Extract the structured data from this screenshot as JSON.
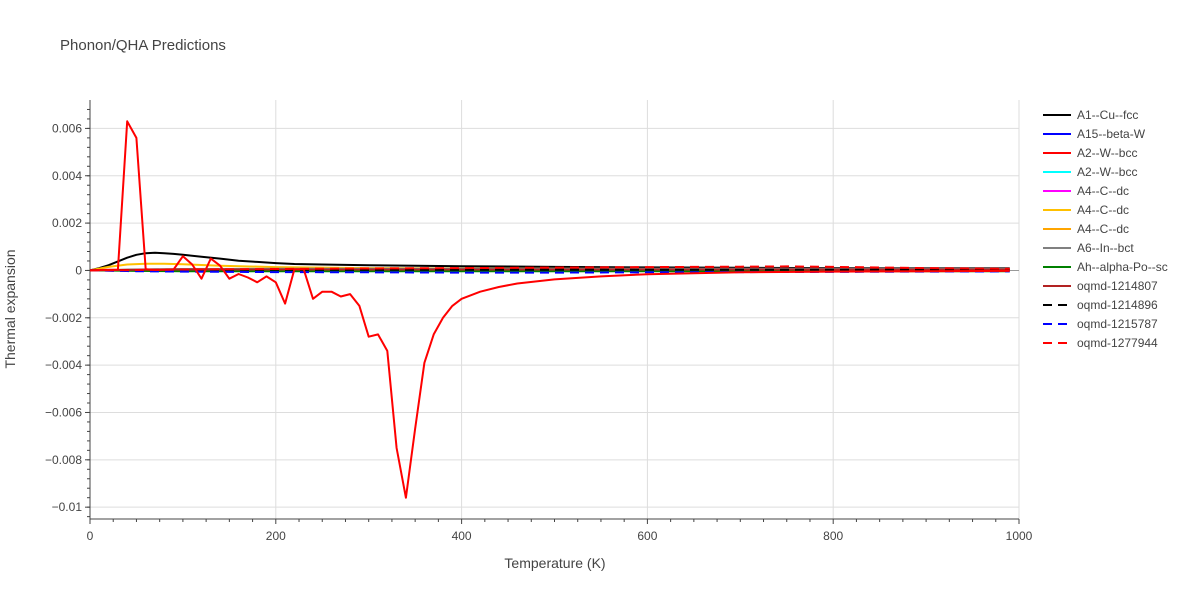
{
  "chart_data": {
    "type": "line",
    "title": "Phonon/QHA Predictions",
    "xlabel": "Temperature (K)",
    "ylabel": "Thermal expansion",
    "xlim": [
      0,
      1000
    ],
    "ylim": [
      -0.0105,
      0.0072
    ],
    "x_ticks": [
      0,
      200,
      400,
      600,
      800,
      1000
    ],
    "x_tick_labels": [
      "0",
      "200",
      "400",
      "600",
      "800",
      "1000"
    ],
    "y_ticks": [
      0.006,
      0.004,
      0.002,
      0,
      -0.002,
      -0.004,
      -0.006,
      -0.008,
      -0.01
    ],
    "y_tick_labels": [
      "0.006",
      "0.004",
      "0.002",
      "0",
      "−0.002",
      "−0.004",
      "−0.006",
      "−0.008",
      "−0.01"
    ],
    "grid": true,
    "legend_position": "right",
    "series": [
      {
        "name": "A1--Cu--fcc",
        "color": "#000000",
        "dash": "solid",
        "x": [
          0,
          10,
          20,
          30,
          40,
          50,
          60,
          70,
          80,
          90,
          100,
          120,
          140,
          160,
          180,
          200,
          220,
          250,
          300,
          400,
          500,
          600,
          700,
          800,
          900,
          990
        ],
        "y": [
          0,
          0.0001,
          0.00022,
          0.00038,
          0.00054,
          0.00066,
          0.00073,
          0.00075,
          0.00073,
          0.0007,
          0.00066,
          0.00058,
          0.0005,
          0.00041,
          0.00036,
          0.00031,
          0.00027,
          0.00025,
          0.00022,
          0.00018,
          0.00015,
          0.00013,
          0.00011,
          0.0001,
          9e-05,
          9e-05
        ]
      },
      {
        "name": "A15--beta-W",
        "color": "#0000ff",
        "dash": "solid",
        "x": [
          0,
          50,
          100,
          200,
          400,
          600,
          800,
          990
        ],
        "y": [
          0,
          1e-05,
          2e-05,
          2e-05,
          2e-05,
          2e-05,
          2e-05,
          2e-05
        ]
      },
      {
        "name": "A2--W--bcc",
        "color": "#ff0000",
        "dash": "solid",
        "x": [
          0,
          10,
          20,
          30,
          40,
          50,
          60,
          70,
          80,
          90,
          100,
          110,
          120,
          130,
          140,
          150,
          160,
          170,
          180,
          190,
          200,
          210,
          220,
          230,
          240,
          250,
          260,
          270,
          280,
          290,
          300,
          310,
          320,
          330,
          340,
          350,
          360,
          370,
          380,
          390,
          400,
          420,
          440,
          460,
          500,
          550,
          600,
          700,
          800,
          900,
          990
        ],
        "y": [
          0,
          2e-05,
          3e-05,
          3e-05,
          0.0063,
          0.0056,
          5e-05,
          2e-05,
          3e-05,
          4e-05,
          0.0006,
          0.00025,
          -0.00035,
          0.0005,
          0.0002,
          -0.00035,
          -0.00015,
          -0.0003,
          -0.0005,
          -0.00025,
          -0.0005,
          -0.0014,
          5e-05,
          5e-05,
          -0.0012,
          -0.0009,
          -0.0009,
          -0.0011,
          -0.001,
          -0.0015,
          -0.0028,
          -0.0027,
          -0.0034,
          -0.0075,
          -0.0096,
          -0.0067,
          -0.0039,
          -0.0027,
          -0.002,
          -0.0015,
          -0.0012,
          -0.0009,
          -0.0007,
          -0.00055,
          -0.00038,
          -0.00025,
          -0.00016,
          -8e-05,
          -5e-05,
          -3e-05,
          -2e-05
        ]
      },
      {
        "name": "A2--W--bcc",
        "color": "#00ffff",
        "dash": "solid",
        "x": [
          0,
          50,
          100,
          200,
          400,
          600,
          800,
          990
        ],
        "y": [
          0,
          2e-05,
          3e-05,
          3e-05,
          3e-05,
          3e-05,
          3e-05,
          3e-05
        ]
      },
      {
        "name": "A4--C--dc",
        "color": "#ff00ff",
        "dash": "solid",
        "x": [
          0,
          50,
          100,
          200,
          400,
          600,
          800,
          990
        ],
        "y": [
          0,
          1e-05,
          2e-05,
          3e-05,
          3e-05,
          3e-05,
          3e-05,
          3e-05
        ]
      },
      {
        "name": "A4--C--dc",
        "color": "#ffc000",
        "dash": "solid",
        "x": [
          0,
          20,
          40,
          60,
          80,
          100,
          140,
          200,
          300,
          400,
          600,
          800,
          990
        ],
        "y": [
          0,
          0.00015,
          0.00025,
          0.00028,
          0.00028,
          0.00026,
          0.0002,
          0.00014,
          0.0001,
          8e-05,
          6e-05,
          5e-05,
          4e-05
        ]
      },
      {
        "name": "A4--C--dc",
        "color": "#ffa500",
        "dash": "solid",
        "x": [
          0,
          50,
          100,
          200,
          400,
          600,
          800,
          990
        ],
        "y": [
          0,
          3e-05,
          5e-05,
          5e-05,
          5e-05,
          5e-05,
          5e-05,
          5e-05
        ]
      },
      {
        "name": "A6--In--bct",
        "color": "#808080",
        "dash": "solid",
        "x": [
          0,
          50,
          100,
          200,
          400,
          600,
          800,
          990
        ],
        "y": [
          0,
          4e-05,
          6e-05,
          7e-05,
          7e-05,
          7e-05,
          7e-05,
          7e-05
        ]
      },
      {
        "name": "Ah--alpha-Po--sc",
        "color": "#008000",
        "dash": "solid",
        "x": [
          0,
          50,
          100,
          200,
          400,
          600,
          800,
          990
        ],
        "y": [
          0,
          -2e-05,
          -3e-05,
          -3e-05,
          -3e-05,
          -3e-05,
          -3e-05,
          -3e-05
        ]
      },
      {
        "name": "oqmd-1214807",
        "color": "#b22222",
        "dash": "solid",
        "x": [
          0,
          50,
          100,
          200,
          400,
          600,
          800,
          990
        ],
        "y": [
          0,
          3e-05,
          4e-05,
          4e-05,
          4e-05,
          4e-05,
          4e-05,
          4e-05
        ]
      },
      {
        "name": "oqmd-1214896",
        "color": "#000000",
        "dash": "dash",
        "x": [
          0,
          50,
          100,
          200,
          400,
          600,
          800,
          990
        ],
        "y": [
          0,
          2e-05,
          3e-05,
          3e-05,
          3e-05,
          3e-05,
          3e-05,
          3e-05
        ]
      },
      {
        "name": "oqmd-1215787",
        "color": "#0000ff",
        "dash": "dash",
        "x": [
          0,
          50,
          100,
          200,
          300,
          400,
          500,
          600,
          700,
          800,
          900,
          990
        ],
        "y": [
          0,
          -3e-05,
          -5e-05,
          -7e-05,
          -8e-05,
          -9e-05,
          -9e-05,
          -8e-05,
          -7e-05,
          -6e-05,
          -5e-05,
          -4e-05
        ]
      },
      {
        "name": "oqmd-1277944",
        "color": "#ff0000",
        "dash": "dash",
        "x": [
          0,
          50,
          100,
          200,
          300,
          400,
          500,
          600,
          700,
          750,
          800,
          900,
          990
        ],
        "y": [
          0,
          2e-05,
          4e-05,
          6e-05,
          8e-05,
          0.0001,
          0.00012,
          0.00014,
          0.00016,
          0.00017,
          0.00015,
          0.0001,
          7e-05
        ]
      }
    ]
  }
}
